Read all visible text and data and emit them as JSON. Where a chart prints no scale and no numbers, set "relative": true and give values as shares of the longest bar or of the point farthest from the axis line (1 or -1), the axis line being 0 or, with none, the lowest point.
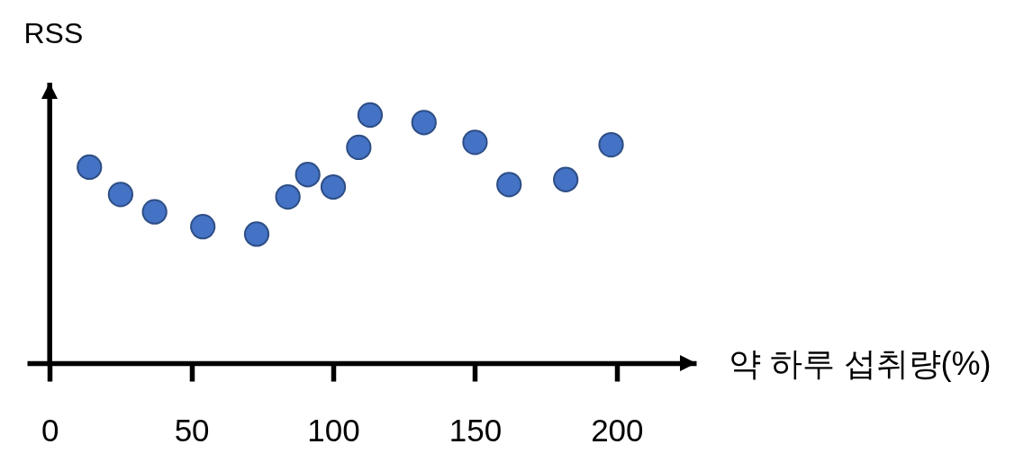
{
  "chart_data": {
    "type": "scatter",
    "xlabel": "약 하루 섭취량(%)",
    "ylabel": "RSS",
    "relative": true,
    "marker": "circle",
    "color": "#4472c4",
    "x": [
      14,
      25,
      37,
      54,
      73,
      84,
      91,
      100,
      109,
      113,
      132,
      150,
      162,
      182,
      198
    ],
    "values": [
      0.79,
      0.68,
      0.61,
      0.55,
      0.52,
      0.67,
      0.76,
      0.71,
      0.87,
      1,
      0.97,
      0.89,
      0.72,
      0.74,
      0.88
    ],
    "xlim": [
      -8,
      228
    ],
    "xticks": [
      0,
      50,
      100,
      150,
      200
    ]
  }
}
